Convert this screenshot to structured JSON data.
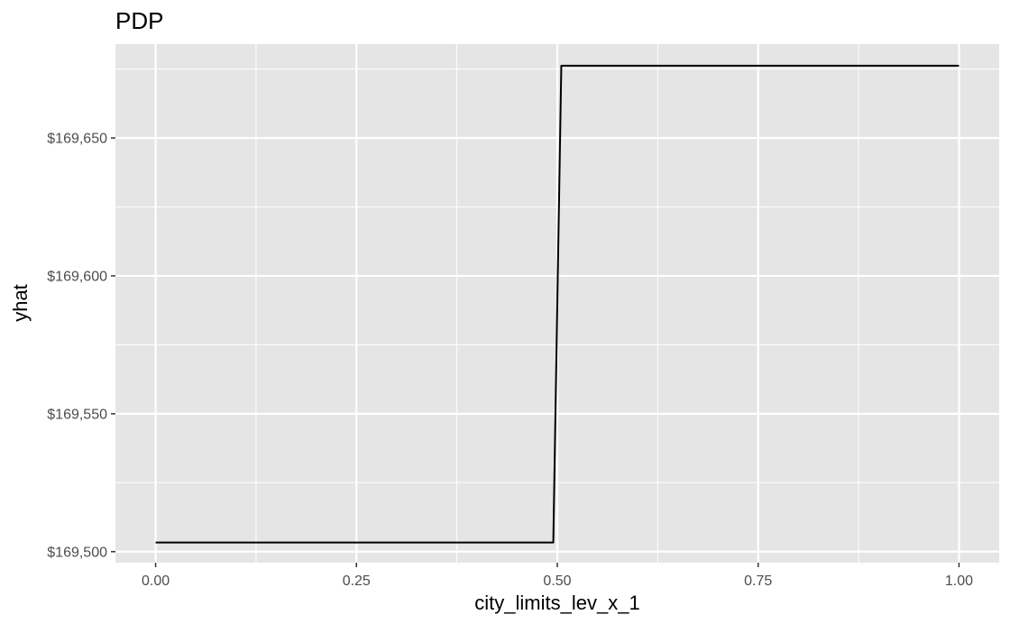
{
  "chart_data": {
    "type": "line",
    "title": "PDP",
    "xlabel": "city_limits_lev_x_1",
    "ylabel": "yhat",
    "xlim": [
      -0.05,
      1.05
    ],
    "ylim": [
      169496,
      169684
    ],
    "x_ticks": [
      0,
      0.25,
      0.5,
      0.75,
      1
    ],
    "x_tick_labels": [
      "0.00",
      "0.25",
      "0.50",
      "0.75",
      "1.00"
    ],
    "y_ticks": [
      169500,
      169550,
      169600,
      169650
    ],
    "y_tick_labels": [
      "$169,500",
      "$169,550",
      "$169,600",
      "$169,650"
    ],
    "grid": true,
    "panel_background": "#e5e5e5",
    "grid_color": "#ffffff",
    "line_color": "#000000",
    "series": [
      {
        "x": [
          0.0,
          0.495,
          0.505,
          1.0
        ],
        "y": [
          169503.3,
          169503.3,
          169676.2,
          169676.2
        ]
      }
    ]
  }
}
